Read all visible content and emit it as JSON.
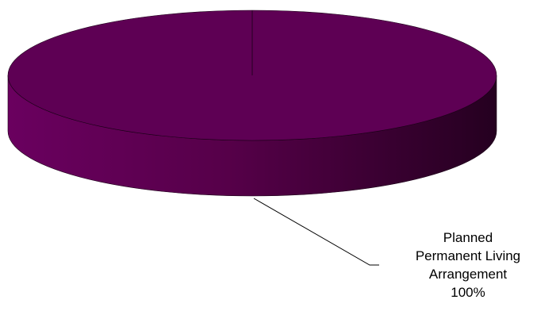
{
  "chart_data": {
    "type": "pie",
    "categories": [
      "Planned Permanent Living Arrangement"
    ],
    "values": [
      100
    ],
    "value_labels": [
      "100%"
    ],
    "colors": [
      "#5e0054"
    ]
  }
}
